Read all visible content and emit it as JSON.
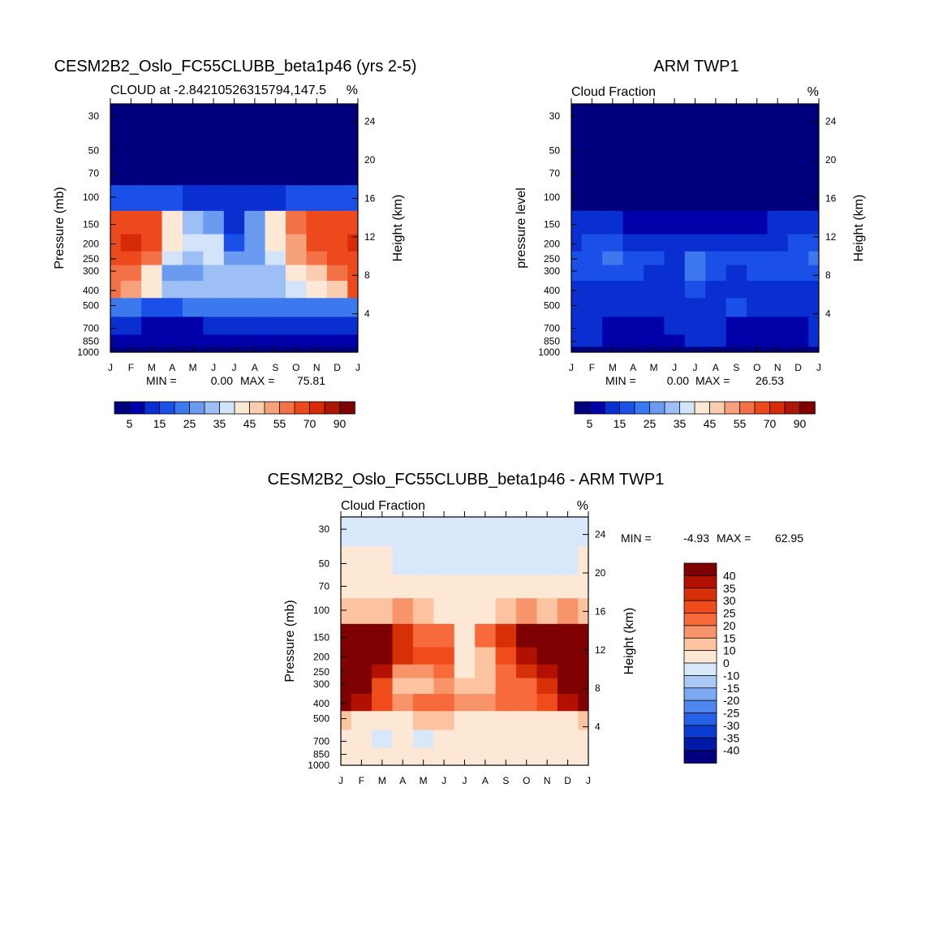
{
  "chart_data": [
    {
      "type": "heatmap",
      "id": "model",
      "title": "CESM2B2_Oslo_FC55CLUBB_beta1p46 (yrs 2-5)",
      "subtitle_left": "CLOUD at -2.84210526315794,147.5",
      "subtitle_right": "%",
      "xlabel": "",
      "ylabel": "Pressure (mb)",
      "ylabel_right": "Height (km)",
      "stats": {
        "min_label": "MIN =",
        "min": "0.00",
        "max_label": "MAX =",
        "max": "75.81"
      },
      "month_labels": [
        "J",
        "F",
        "M",
        "A",
        "M",
        "J",
        "J",
        "A",
        "S",
        "O",
        "N",
        "D",
        "J"
      ],
      "pressure_ticks": [
        30,
        50,
        70,
        100,
        150,
        200,
        250,
        300,
        400,
        500,
        700,
        850,
        1000
      ],
      "height_ticks": [
        24,
        20,
        16,
        12,
        8,
        4
      ],
      "ylim": [
        1000,
        25
      ],
      "colorbar": {
        "ticks": [
          "5",
          "15",
          "25",
          "35",
          "45",
          "55",
          "70",
          "90"
        ],
        "colors": [
          "#00007f",
          "#0000a8",
          "#0a2fd1",
          "#1a50e8",
          "#3c78ee",
          "#6a9bf0",
          "#9ebff5",
          "#d3e4fa",
          "#fde8d6",
          "#fbcdb0",
          "#f7a07c",
          "#f37147",
          "#ec4a1c",
          "#d62a08",
          "#ad1504",
          "#7f0000"
        ]
      },
      "rows_hpa": [
        30,
        50,
        70,
        100,
        150,
        200,
        250,
        300,
        400,
        500,
        700,
        850,
        1000
      ],
      "values": [
        [
          1,
          1,
          1,
          1,
          1,
          1,
          1,
          1,
          1,
          1,
          1,
          1,
          1
        ],
        [
          2,
          2,
          2,
          2,
          2,
          2,
          2,
          2,
          2,
          2,
          2,
          2,
          2
        ],
        [
          3,
          3,
          3,
          3,
          3,
          3,
          3,
          3,
          3,
          3,
          3,
          3,
          3
        ],
        [
          15,
          17,
          15,
          18,
          14,
          10,
          10,
          11,
          14,
          17,
          15,
          18,
          18
        ],
        [
          60,
          68,
          65,
          42,
          32,
          28,
          13,
          28,
          42,
          55,
          60,
          62,
          65
        ],
        [
          68,
          75,
          60,
          43,
          38,
          38,
          18,
          28,
          40,
          52,
          60,
          65,
          70
        ],
        [
          62,
          68,
          55,
          36,
          30,
          38,
          25,
          28,
          35,
          50,
          55,
          60,
          68
        ],
        [
          58,
          58,
          44,
          28,
          28,
          32,
          30,
          30,
          34,
          40,
          48,
          55,
          65
        ],
        [
          55,
          52,
          42,
          30,
          32,
          32,
          32,
          32,
          34,
          36,
          40,
          48,
          62
        ],
        [
          22,
          22,
          18,
          18,
          20,
          22,
          22,
          22,
          22,
          22,
          20,
          20,
          22
        ],
        [
          10,
          10,
          8,
          7,
          7,
          10,
          12,
          12,
          10,
          10,
          10,
          10,
          10
        ],
        [
          8,
          8,
          8,
          6,
          6,
          8,
          8,
          8,
          8,
          8,
          8,
          8,
          8
        ],
        [
          2,
          2,
          2,
          2,
          2,
          2,
          2,
          2,
          2,
          2,
          2,
          2,
          2
        ]
      ]
    },
    {
      "type": "heatmap",
      "id": "obs",
      "title": "ARM TWP1",
      "subtitle_left": "Cloud Fraction",
      "subtitle_right": "%",
      "xlabel": "",
      "ylabel": "pressure level",
      "ylabel_right": "Height (km)",
      "stats": {
        "min_label": "MIN =",
        "min": "0.00",
        "max_label": "MAX =",
        "max": "26.53"
      },
      "month_labels": [
        "J",
        "F",
        "M",
        "A",
        "M",
        "J",
        "J",
        "A",
        "S",
        "O",
        "N",
        "D",
        "J"
      ],
      "pressure_ticks": [
        30,
        50,
        70,
        100,
        150,
        200,
        250,
        300,
        400,
        500,
        700,
        850,
        1000
      ],
      "height_ticks": [
        24,
        20,
        16,
        12,
        8,
        4
      ],
      "ylim": [
        1000,
        25
      ],
      "colorbar": {
        "ticks": [
          "5",
          "15",
          "25",
          "35",
          "45",
          "55",
          "70",
          "90"
        ],
        "colors": [
          "#00007f",
          "#0000a8",
          "#0a2fd1",
          "#1a50e8",
          "#3c78ee",
          "#6a9bf0",
          "#9ebff5",
          "#d3e4fa",
          "#fde8d6",
          "#fbcdb0",
          "#f7a07c",
          "#f37147",
          "#ec4a1c",
          "#d62a08",
          "#ad1504",
          "#7f0000"
        ]
      },
      "rows_hpa": [
        30,
        50,
        70,
        100,
        150,
        200,
        250,
        300,
        400,
        500,
        700,
        850,
        1000
      ],
      "values": [
        [
          1,
          1,
          1,
          1,
          1,
          1,
          1,
          1,
          1,
          1,
          1,
          1,
          1
        ],
        [
          1,
          1,
          1,
          1,
          1,
          1,
          1,
          1,
          1,
          1,
          1,
          1,
          1
        ],
        [
          1,
          1,
          1,
          1,
          1,
          1,
          1,
          1,
          1,
          1,
          1,
          1,
          1
        ],
        [
          4,
          4,
          3,
          3,
          2,
          2,
          2,
          2,
          2,
          2,
          3,
          3,
          4
        ],
        [
          10,
          12,
          12,
          9,
          8,
          8,
          8,
          8,
          8,
          9,
          10,
          10,
          10
        ],
        [
          14,
          15,
          15,
          13,
          12,
          12,
          14,
          14,
          13,
          13,
          14,
          15,
          15
        ],
        [
          16,
          16,
          20,
          18,
          15,
          14,
          20,
          16,
          15,
          19,
          18,
          16,
          20
        ],
        [
          15,
          15,
          18,
          17,
          14,
          14,
          20,
          16,
          14,
          18,
          16,
          15,
          18
        ],
        [
          14,
          13,
          13,
          11,
          12,
          12,
          15,
          13,
          14,
          14,
          14,
          12,
          14
        ],
        [
          12,
          13,
          12,
          11,
          10,
          12,
          13,
          14,
          16,
          14,
          13,
          12,
          12
        ],
        [
          10,
          10,
          9,
          7,
          8,
          10,
          11,
          10,
          9,
          9,
          9,
          9,
          10
        ],
        [
          10,
          10,
          9,
          7,
          7,
          8,
          10,
          10,
          9,
          9,
          9,
          9,
          10
        ],
        [
          4,
          4,
          4,
          4,
          4,
          4,
          4,
          4,
          4,
          4,
          4,
          4,
          4
        ]
      ]
    },
    {
      "type": "heatmap",
      "id": "diff",
      "title": "CESM2B2_Oslo_FC55CLUBB_beta1p46 - ARM TWP1",
      "subtitle_left": "Cloud Fraction",
      "subtitle_right": "%",
      "xlabel": "",
      "ylabel": "Pressure (mb)",
      "ylabel_right": "Height (km)",
      "stats": {
        "min_label": "MIN =",
        "min": "-4.93",
        "max_label": "MAX =",
        "max": "62.95"
      },
      "month_labels": [
        "J",
        "F",
        "M",
        "A",
        "M",
        "J",
        "J",
        "A",
        "S",
        "O",
        "N",
        "D",
        "J"
      ],
      "pressure_ticks": [
        30,
        50,
        70,
        100,
        150,
        200,
        250,
        300,
        400,
        500,
        700,
        850,
        1000
      ],
      "height_ticks": [
        24,
        20,
        16,
        12,
        8,
        4
      ],
      "ylim": [
        1000,
        25
      ],
      "colorbar": {
        "ticks": [
          "40",
          "35",
          "30",
          "25",
          "20",
          "15",
          "10",
          "0",
          "-10",
          "-15",
          "-20",
          "-25",
          "-30",
          "-35",
          "-40"
        ],
        "colors": [
          "#7f0000",
          "#b21000",
          "#d83006",
          "#f04c1b",
          "#f66a3c",
          "#f8946a",
          "#fbc3a0",
          "#fde8d6",
          "#d8e7fa",
          "#aac8f6",
          "#7da8f2",
          "#4f86ee",
          "#2560e7",
          "#0c3bd0",
          "#0019a6",
          "#00007f"
        ]
      },
      "rows_hpa": [
        30,
        50,
        70,
        100,
        150,
        200,
        250,
        300,
        400,
        500,
        700,
        850,
        1000
      ],
      "values": [
        [
          -2,
          -2,
          -2,
          -2,
          -2,
          -2,
          -2,
          -2,
          -2,
          -2,
          -2,
          -2,
          -2
        ],
        [
          1,
          1,
          1,
          -2,
          -2,
          -2,
          -2,
          -2,
          -2,
          -2,
          -2,
          -2,
          1
        ],
        [
          2,
          2,
          2,
          2,
          2,
          1,
          2,
          2,
          2,
          2,
          2,
          2,
          2
        ],
        [
          12,
          13,
          12,
          15,
          12,
          8,
          8,
          9,
          12,
          15,
          12,
          15,
          14
        ],
        [
          50,
          56,
          53,
          33,
          24,
          20,
          5,
          20,
          34,
          46,
          50,
          52,
          55
        ],
        [
          54,
          60,
          45,
          30,
          26,
          26,
          4,
          14,
          27,
          39,
          46,
          50,
          55
        ],
        [
          46,
          52,
          35,
          18,
          15,
          24,
          5,
          12,
          20,
          31,
          37,
          44,
          48
        ],
        [
          43,
          43,
          26,
          11,
          14,
          18,
          10,
          14,
          20,
          22,
          32,
          40,
          47
        ],
        [
          41,
          39,
          29,
          19,
          20,
          20,
          17,
          19,
          20,
          22,
          26,
          36,
          48
        ],
        [
          10,
          9,
          6,
          7,
          10,
          10,
          9,
          8,
          6,
          8,
          7,
          8,
          10
        ],
        [
          1,
          1,
          -1,
          1,
          -2,
          1,
          1,
          2,
          1,
          1,
          1,
          1,
          1
        ],
        [
          1,
          1,
          1,
          1,
          1,
          1,
          1,
          1,
          1,
          1,
          1,
          1,
          1
        ],
        [
          1,
          1,
          1,
          1,
          1,
          1,
          1,
          1,
          1,
          1,
          1,
          1,
          1
        ]
      ]
    }
  ]
}
